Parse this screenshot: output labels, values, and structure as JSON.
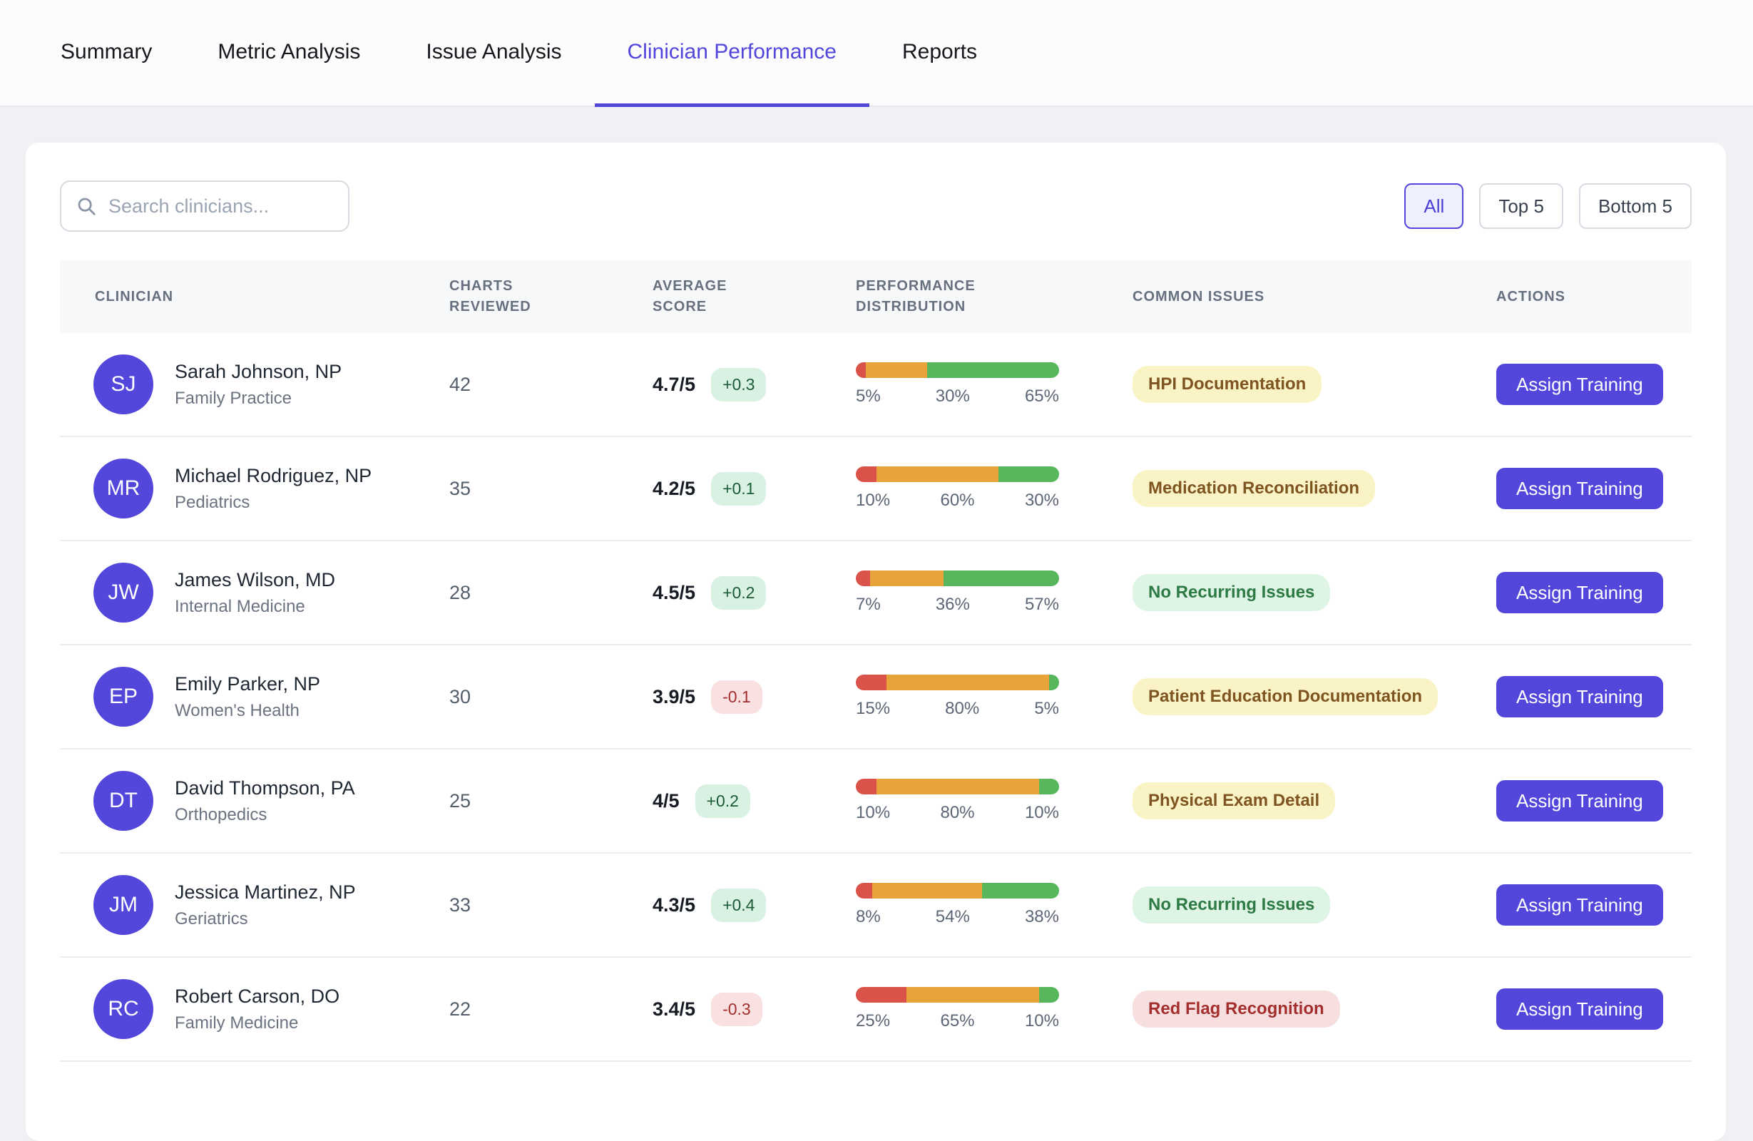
{
  "tabs": [
    {
      "label": "Summary",
      "active": false
    },
    {
      "label": "Metric Analysis",
      "active": false
    },
    {
      "label": "Issue Analysis",
      "active": false
    },
    {
      "label": "Clinician Performance",
      "active": true
    },
    {
      "label": "Reports",
      "active": false
    }
  ],
  "toolbar": {
    "search_placeholder": "Search clinicians...",
    "filters": [
      {
        "label": "All",
        "active": true
      },
      {
        "label": "Top 5",
        "active": false
      },
      {
        "label": "Bottom 5",
        "active": false
      }
    ]
  },
  "table": {
    "columns": [
      "Clinician",
      "Charts Reviewed",
      "Average Score",
      "Performance Distribution",
      "Common Issues",
      "Actions"
    ],
    "rows": [
      {
        "initials": "SJ",
        "name": "Sarah Johnson, NP",
        "specialty": "Family Practice",
        "charts_reviewed": "42",
        "average_score": "4.7/5",
        "score_delta": "+0.3",
        "delta_positive": true,
        "distribution": {
          "red_pct": "5%",
          "orange_pct": "30%",
          "green_pct": "65%"
        },
        "issue": {
          "label": "HPI Documentation",
          "type": "warning"
        },
        "action_label": "Assign Training"
      },
      {
        "initials": "MR",
        "name": "Michael Rodriguez, NP",
        "specialty": "Pediatrics",
        "charts_reviewed": "35",
        "average_score": "4.2/5",
        "score_delta": "+0.1",
        "delta_positive": true,
        "distribution": {
          "red_pct": "10%",
          "orange_pct": "60%",
          "green_pct": "30%"
        },
        "issue": {
          "label": "Medication Reconciliation",
          "type": "warning"
        },
        "action_label": "Assign Training"
      },
      {
        "initials": "JW",
        "name": "James Wilson, MD",
        "specialty": "Internal Medicine",
        "charts_reviewed": "28",
        "average_score": "4.5/5",
        "score_delta": "+0.2",
        "delta_positive": true,
        "distribution": {
          "red_pct": "7%",
          "orange_pct": "36%",
          "green_pct": "57%"
        },
        "issue": {
          "label": "No Recurring Issues",
          "type": "success"
        },
        "action_label": "Assign Training"
      },
      {
        "initials": "EP",
        "name": "Emily Parker, NP",
        "specialty": "Women's Health",
        "charts_reviewed": "30",
        "average_score": "3.9/5",
        "score_delta": "-0.1",
        "delta_positive": false,
        "distribution": {
          "red_pct": "15%",
          "orange_pct": "80%",
          "green_pct": "5%"
        },
        "issue": {
          "label": "Patient Education Documentation",
          "type": "warning"
        },
        "action_label": "Assign Training"
      },
      {
        "initials": "DT",
        "name": "David Thompson, PA",
        "specialty": "Orthopedics",
        "charts_reviewed": "25",
        "average_score": "4/5",
        "score_delta": "+0.2",
        "delta_positive": true,
        "distribution": {
          "red_pct": "10%",
          "orange_pct": "80%",
          "green_pct": "10%"
        },
        "issue": {
          "label": "Physical Exam Detail",
          "type": "warning"
        },
        "action_label": "Assign Training"
      },
      {
        "initials": "JM",
        "name": "Jessica Martinez, NP",
        "specialty": "Geriatrics",
        "charts_reviewed": "33",
        "average_score": "4.3/5",
        "score_delta": "+0.4",
        "delta_positive": true,
        "distribution": {
          "red_pct": "8%",
          "orange_pct": "54%",
          "green_pct": "38%"
        },
        "issue": {
          "label": "No Recurring Issues",
          "type": "success"
        },
        "action_label": "Assign Training"
      },
      {
        "initials": "RC",
        "name": "Robert Carson, DO",
        "specialty": "Family Medicine",
        "charts_reviewed": "22",
        "average_score": "3.4/5",
        "score_delta": "-0.3",
        "delta_positive": false,
        "distribution": {
          "red_pct": "25%",
          "orange_pct": "65%",
          "green_pct": "10%"
        },
        "issue": {
          "label": "Red Flag Recognition",
          "type": "danger"
        },
        "action_label": "Assign Training"
      }
    ]
  },
  "colors": {
    "accent": "#5246db",
    "bar_red": "#d9534b",
    "bar_orange": "#e8a33b",
    "bar_green": "#58b65c",
    "badge_warning_bg": "#faf3c5",
    "badge_success_bg": "#def4e4",
    "badge_danger_bg": "#f8dfdf"
  }
}
